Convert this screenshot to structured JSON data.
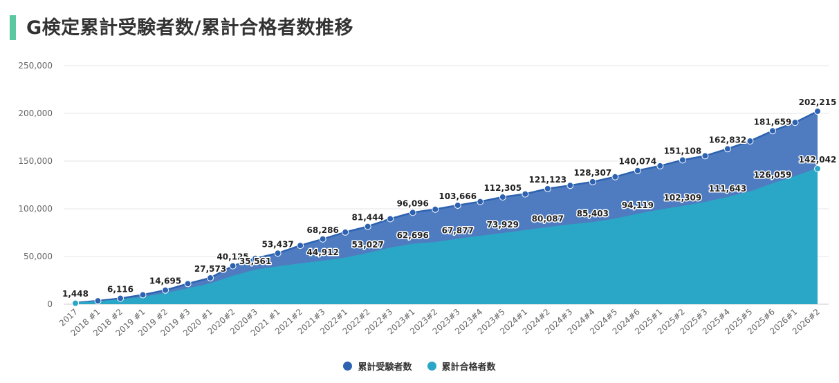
{
  "title": "G検定累計受験者数/累計合格者数推移",
  "colors": {
    "accent": "#5cc8a0",
    "series1": "#2d62b0",
    "series1_fill": "#4f7cc0",
    "series2": "#2aa7c6",
    "grid": "#e5e5e5"
  },
  "chart_data": {
    "type": "area",
    "title": "G検定累計受験者数/累計合格者数推移",
    "xlabel": "",
    "ylabel": "",
    "ylim": [
      0,
      250000
    ],
    "yticks": [
      "0",
      "50,000",
      "100,000",
      "150,000",
      "200,000",
      "250,000"
    ],
    "grid": true,
    "legend_position": "bottom",
    "categories": [
      "2017",
      "2018 #1",
      "2018 #2",
      "2019 #1",
      "2019 #2",
      "2019 #3",
      "2020 #1",
      "2020#2",
      "2020#3",
      "2021 #1",
      "2021#2",
      "2021#3",
      "2022#1",
      "2022#2",
      "2022#3",
      "2023#1",
      "2023#2",
      "2023#3",
      "2023#4",
      "2023#5",
      "2024#1",
      "2024#2",
      "2024#3",
      "2024#4",
      "2024#5",
      "2024#6",
      "2025#1",
      "2025#2",
      "2025#3",
      "2025#4",
      "2025#5",
      "2025#6",
      "2026#1",
      "2026#2"
    ],
    "series": [
      {
        "name": "累計受験者数",
        "values": [
          1448,
          3500,
          6116,
          9800,
          14695,
          21500,
          27573,
          40125,
          48000,
          53437,
          61500,
          68286,
          75500,
          81444,
          89500,
          96096,
          99500,
          103666,
          107500,
          112305,
          115500,
          121123,
          124500,
          128307,
          133500,
          140074,
          145000,
          151108,
          155500,
          162832,
          171000,
          181659,
          190500,
          202215
        ],
        "labels": [
          "1,448",
          "",
          "6,116",
          "",
          "14,695",
          "",
          "27,573",
          "40,125",
          "",
          "53,437",
          "",
          "68,286",
          "",
          "81,444",
          "",
          "96,096",
          "",
          "103,666",
          "",
          "112,305",
          "",
          "121,123",
          "",
          "128,307",
          "",
          "140,074",
          "",
          "151,108",
          "",
          "162,832",
          "",
          "181,659",
          "",
          "202,215"
        ]
      },
      {
        "name": "累計合格者数",
        "values": [
          1000,
          2500,
          4500,
          7000,
          11000,
          16000,
          21000,
          29000,
          35561,
          39000,
          42000,
          44912,
          48000,
          53027,
          58500,
          62696,
          64500,
          67877,
          71000,
          73929,
          77000,
          80087,
          83000,
          85403,
          89000,
          94119,
          98500,
          102309,
          106500,
          111643,
          117500,
          126059,
          133500,
          142042
        ],
        "labels": [
          "",
          "",
          "",
          "",
          "",
          "",
          "",
          "",
          "35,561",
          "",
          "",
          "44,912",
          "",
          "53,027",
          "",
          "62,696",
          "",
          "67,877",
          "",
          "73,929",
          "",
          "80,087",
          "",
          "85,403",
          "",
          "94,119",
          "",
          "102,309",
          "",
          "111,643",
          "",
          "126,059",
          "",
          "142,042"
        ]
      }
    ]
  }
}
